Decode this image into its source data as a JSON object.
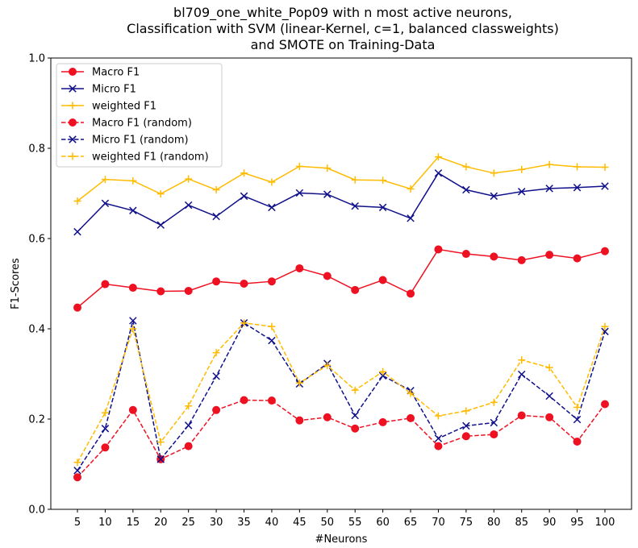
{
  "chart_data": {
    "type": "line",
    "title_lines": [
      "bl709_one_white_Pop09 with n most active neurons,",
      "Classification with SVM (linear-Kernel, c=1, balanced classweights)",
      "and SMOTE on Training-Data"
    ],
    "xlabel": "#Neurons",
    "ylabel": "F1-Scores",
    "ylim": [
      0.0,
      1.0
    ],
    "yticks": [
      "0.0",
      "0.2",
      "0.4",
      "0.6",
      "0.8",
      "1.0"
    ],
    "x": [
      5,
      10,
      15,
      20,
      25,
      30,
      35,
      40,
      45,
      50,
      55,
      60,
      65,
      70,
      75,
      80,
      85,
      90,
      95,
      100
    ],
    "legend_position": "upper-left",
    "series": [
      {
        "name": "Macro F1",
        "color": "#ee1122",
        "marker": "circle",
        "dash": "solid",
        "values": [
          0.447,
          0.499,
          0.491,
          0.483,
          0.484,
          0.505,
          0.5,
          0.505,
          0.534,
          0.517,
          0.486,
          0.508,
          0.478,
          0.576,
          0.566,
          0.56,
          0.552,
          0.564,
          0.556,
          0.572
        ]
      },
      {
        "name": "Micro F1",
        "color": "#10108a",
        "marker": "x",
        "dash": "solid",
        "values": [
          0.615,
          0.678,
          0.662,
          0.63,
          0.674,
          0.649,
          0.694,
          0.669,
          0.701,
          0.698,
          0.672,
          0.669,
          0.645,
          0.745,
          0.708,
          0.694,
          0.704,
          0.711,
          0.713,
          0.716
        ]
      },
      {
        "name": "weighted F1",
        "color": "#ffbb00",
        "marker": "plus",
        "dash": "solid",
        "values": [
          0.683,
          0.731,
          0.728,
          0.699,
          0.732,
          0.708,
          0.745,
          0.725,
          0.76,
          0.756,
          0.73,
          0.729,
          0.71,
          0.781,
          0.759,
          0.745,
          0.753,
          0.764,
          0.759,
          0.758
        ]
      },
      {
        "name": "Macro F1 (random)",
        "color": "#ee1122",
        "marker": "circle",
        "dash": "dashed",
        "values": [
          0.071,
          0.137,
          0.22,
          0.111,
          0.14,
          0.22,
          0.242,
          0.241,
          0.197,
          0.204,
          0.179,
          0.193,
          0.202,
          0.14,
          0.162,
          0.166,
          0.208,
          0.204,
          0.15,
          0.233
        ]
      },
      {
        "name": "Micro F1 (random)",
        "color": "#10108a",
        "marker": "x",
        "dash": "dashed",
        "values": [
          0.086,
          0.179,
          0.418,
          0.111,
          0.186,
          0.295,
          0.413,
          0.374,
          0.278,
          0.323,
          0.208,
          0.296,
          0.263,
          0.157,
          0.185,
          0.192,
          0.299,
          0.251,
          0.199,
          0.394
        ]
      },
      {
        "name": "weighted F1 (random)",
        "color": "#ffbb00",
        "marker": "plus",
        "dash": "dashed",
        "values": [
          0.104,
          0.214,
          0.4,
          0.149,
          0.229,
          0.347,
          0.413,
          0.405,
          0.28,
          0.319,
          0.264,
          0.305,
          0.257,
          0.207,
          0.218,
          0.237,
          0.331,
          0.314,
          0.226,
          0.405
        ]
      }
    ]
  }
}
